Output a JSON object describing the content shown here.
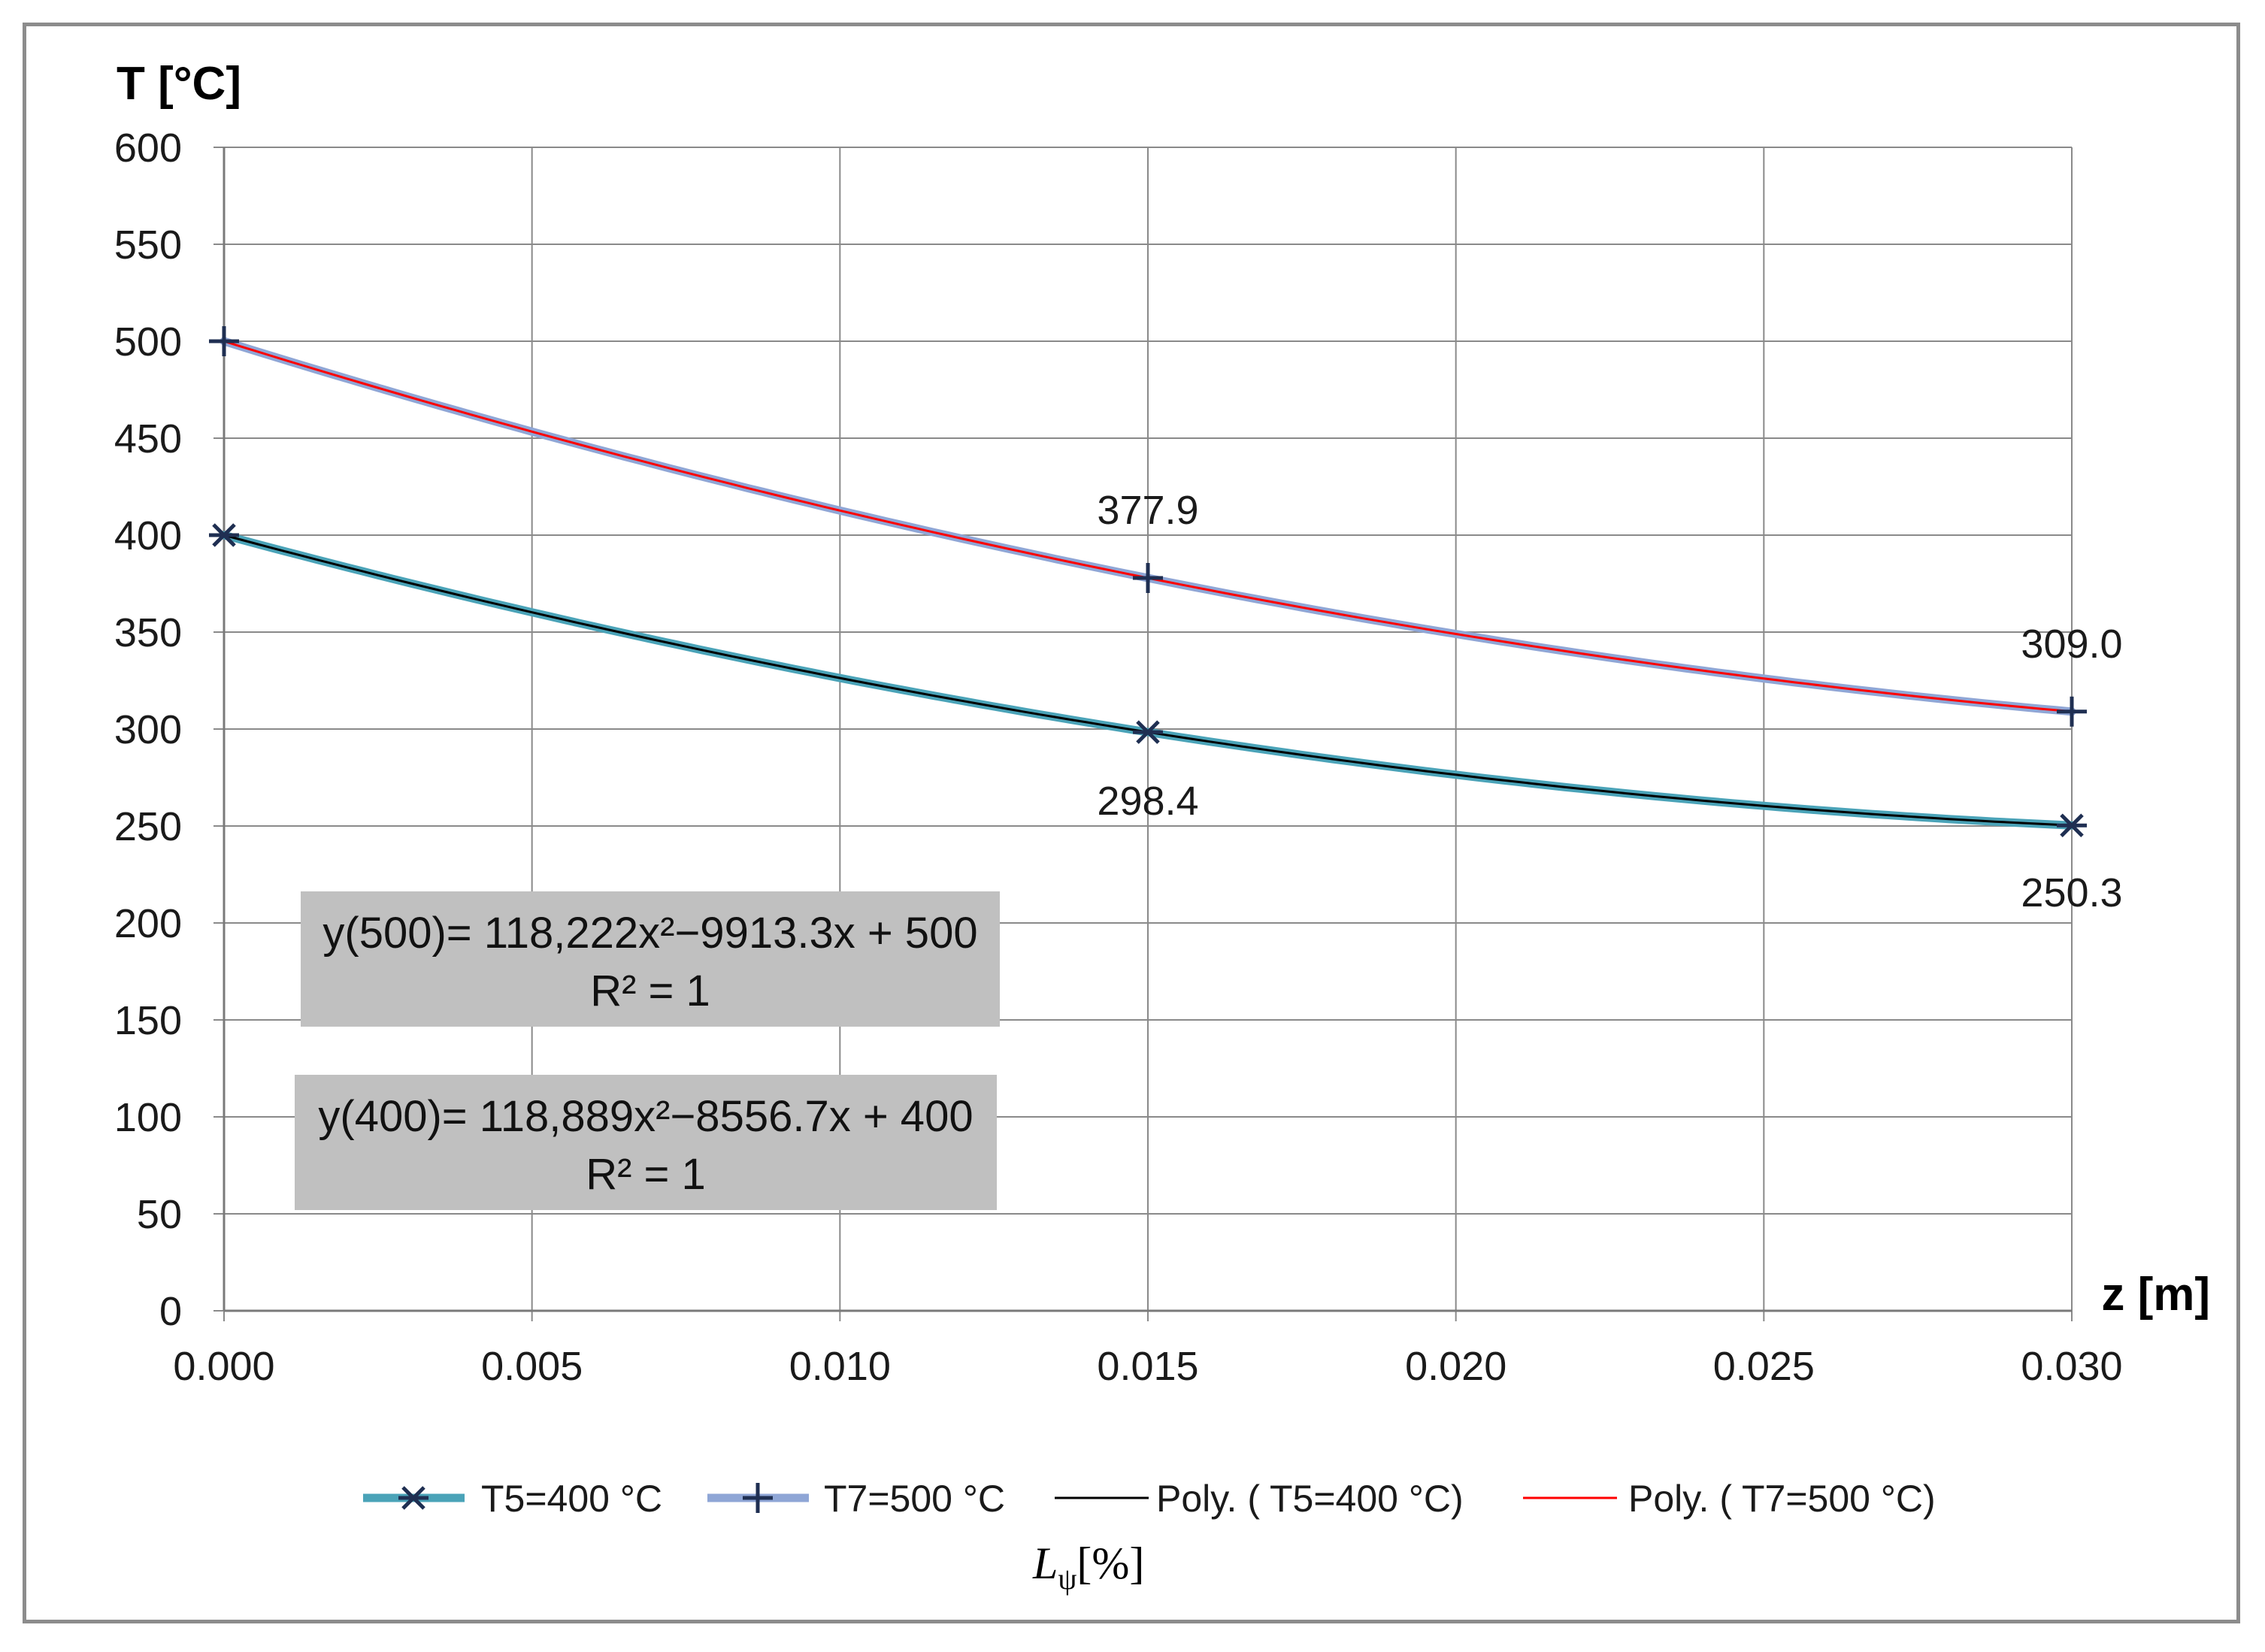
{
  "chart_data": {
    "type": "line",
    "title": "",
    "ylabel": "T [°C]",
    "xlabel": "z [m]",
    "xlim": [
      0.0,
      0.03
    ],
    "ylim": [
      0,
      600
    ],
    "x_ticks": [
      "0.000",
      "0.005",
      "0.010",
      "0.015",
      "0.020",
      "0.025",
      "0.030"
    ],
    "y_ticks": [
      "0",
      "50",
      "100",
      "150",
      "200",
      "250",
      "300",
      "350",
      "400",
      "450",
      "500",
      "550",
      "600"
    ],
    "grid": true,
    "legend_position": "bottom",
    "series": [
      {
        "name": "T5=400 °C",
        "x": [
          0.0,
          0.015,
          0.03
        ],
        "y": [
          400,
          298.4,
          250.3
        ],
        "color": "#4aa3b8",
        "marker": "asterisk"
      },
      {
        "name": "T7=500 °C",
        "x": [
          0.0,
          0.015,
          0.03
        ],
        "y": [
          500,
          377.9,
          309.0
        ],
        "color": "#8fa6d6",
        "marker": "plus"
      },
      {
        "name": "Poly. ( T5=400 °C)",
        "type": "trendline",
        "coefficients": [
          118889,
          -8556.7,
          400
        ],
        "color": "#000000"
      },
      {
        "name": "Poly. ( T7=500 °C)",
        "type": "trendline",
        "coefficients": [
          118222,
          -9913.3,
          500
        ],
        "color": "#ff0000"
      }
    ],
    "data_labels": [
      "377.9",
      "309.0",
      "298.4",
      "250.3"
    ],
    "annotations": [
      {
        "line1": "y(500)= 118,222x²−9913.3x + 500",
        "line2": "R² = 1"
      },
      {
        "line1": "y(400)= 118,889x²−8556.7x + 400",
        "line2": "R² = 1"
      }
    ],
    "caption": "L_ψ [%]"
  }
}
